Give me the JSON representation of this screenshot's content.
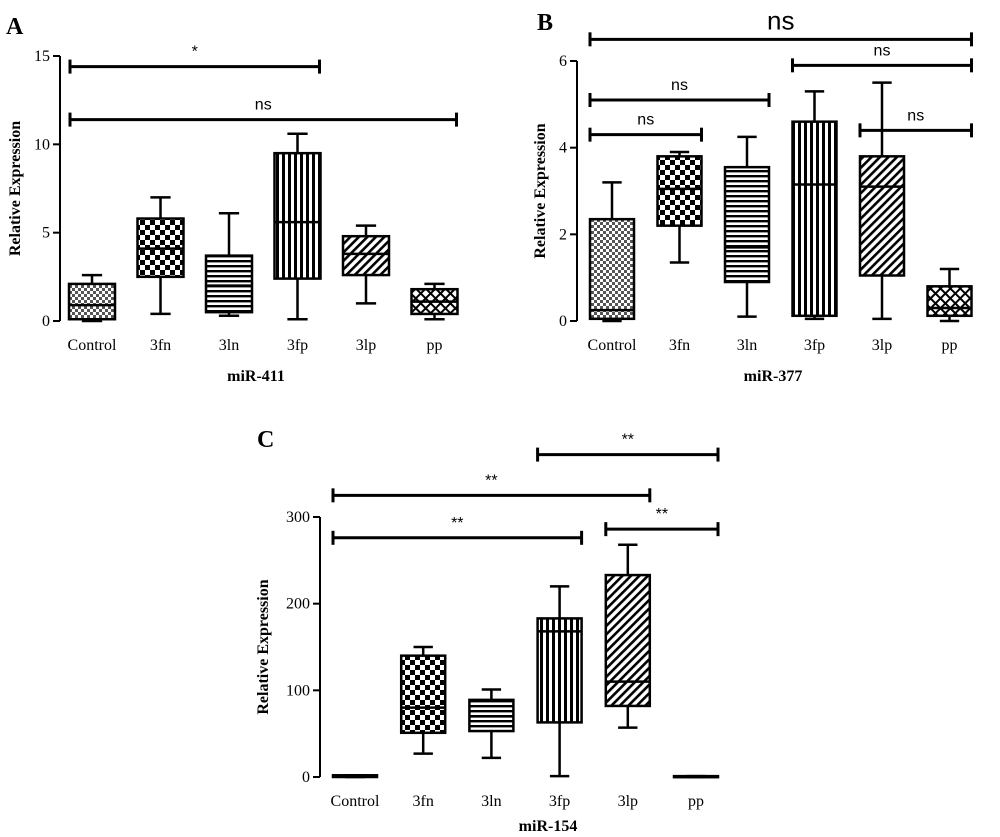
{
  "chart_data": [
    {
      "type": "box",
      "panel_label": "A",
      "xlabel": "miR-411",
      "ylabel": "Relative Expression",
      "categories": [
        "Control",
        "3fn",
        "3ln",
        "3fp",
        "3lp",
        "pp"
      ],
      "ylim": [
        0,
        15
      ],
      "yticks": [
        "0",
        "5",
        "10",
        "15"
      ],
      "boxes": [
        {
          "min": 0.0,
          "q1": 0.1,
          "median": 0.9,
          "q3": 2.1,
          "max": 2.6,
          "pattern": "checker-fine"
        },
        {
          "min": 0.4,
          "q1": 2.5,
          "median": 4.1,
          "q3": 5.8,
          "max": 7.0,
          "pattern": "checker"
        },
        {
          "min": 0.3,
          "q1": 0.5,
          "median": 2.0,
          "q3": 3.7,
          "max": 6.1,
          "pattern": "hlines"
        },
        {
          "min": 0.1,
          "q1": 2.4,
          "median": 5.6,
          "q3": 9.5,
          "max": 10.6,
          "pattern": "vlines"
        },
        {
          "min": 1.0,
          "q1": 2.6,
          "median": 3.8,
          "q3": 4.8,
          "max": 5.4,
          "pattern": "diag"
        },
        {
          "min": 0.1,
          "q1": 0.4,
          "median": 1.1,
          "q3": 1.8,
          "max": 2.1,
          "pattern": "crosshatch"
        }
      ],
      "comparisons": [
        {
          "from": "Control",
          "to": "3fp",
          "label": "*",
          "y": 14.4
        },
        {
          "from": "Control",
          "to": "pp",
          "label": "ns",
          "y": 11.4
        }
      ]
    },
    {
      "type": "box",
      "panel_label": "B",
      "xlabel": "miR-377",
      "ylabel": "Relative Expression",
      "categories": [
        "Control",
        "3fn",
        "3ln",
        "3fp",
        "3lp",
        "pp"
      ],
      "ylim": [
        0,
        6
      ],
      "yticks": [
        "0",
        "2",
        "4",
        "6"
      ],
      "boxes": [
        {
          "min": 0.0,
          "q1": 0.05,
          "median": 0.25,
          "q3": 2.35,
          "max": 3.2,
          "pattern": "checker-fine"
        },
        {
          "min": 1.35,
          "q1": 2.2,
          "median": 3.05,
          "q3": 3.8,
          "max": 3.9,
          "pattern": "checker"
        },
        {
          "min": 0.1,
          "q1": 0.9,
          "median": 1.7,
          "q3": 3.55,
          "max": 4.25,
          "pattern": "hlines"
        },
        {
          "min": 0.05,
          "q1": 0.12,
          "median": 3.15,
          "q3": 4.6,
          "max": 5.3,
          "pattern": "vlines"
        },
        {
          "min": 0.05,
          "q1": 1.05,
          "median": 3.1,
          "q3": 3.8,
          "max": 5.5,
          "pattern": "diag"
        },
        {
          "min": 0.0,
          "q1": 0.12,
          "median": 0.3,
          "q3": 0.8,
          "max": 1.2,
          "pattern": "crosshatch"
        }
      ],
      "comparisons": [
        {
          "from": "Control",
          "to": "pp",
          "label": "ns",
          "y": 6.5,
          "large": true
        },
        {
          "from": "3fp",
          "to": "pp",
          "label": "ns",
          "y": 5.9
        },
        {
          "from": "Control",
          "to": "3ln",
          "label": "ns",
          "y": 5.1
        },
        {
          "from": "Control",
          "to": "3fn",
          "label": "ns",
          "y": 4.3
        },
        {
          "from": "3lp",
          "to": "pp",
          "label": "ns",
          "y": 4.4
        }
      ]
    },
    {
      "type": "box",
      "panel_label": "C",
      "xlabel": "miR-154",
      "ylabel": "Relative Expression",
      "categories": [
        "Control",
        "3fn",
        "3ln",
        "3fp",
        "3lp",
        "pp"
      ],
      "ylim": [
        0,
        300
      ],
      "yticks": [
        "0",
        "100",
        "200",
        "300"
      ],
      "boxes": [
        {
          "min": 0,
          "q1": 0,
          "median": 1,
          "q3": 2,
          "max": 2,
          "pattern": "checker-fine"
        },
        {
          "min": 27,
          "q1": 51,
          "median": 80,
          "q3": 140,
          "max": 150,
          "pattern": "checker"
        },
        {
          "min": 22,
          "q1": 53,
          "median": 70,
          "q3": 89,
          "max": 101,
          "pattern": "hlines"
        },
        {
          "min": 1,
          "q1": 63,
          "median": 168,
          "q3": 183,
          "max": 220,
          "pattern": "vlines"
        },
        {
          "min": 57,
          "q1": 82,
          "median": 110,
          "q3": 233,
          "max": 268,
          "pattern": "diag"
        },
        {
          "min": 0,
          "q1": 0,
          "median": 0,
          "q3": 1,
          "max": 1,
          "pattern": "crosshatch"
        }
      ],
      "comparisons": [
        {
          "from": "3fp",
          "to": "pp",
          "label": "**",
          "y": 372
        },
        {
          "from": "Control",
          "to": "3lp",
          "label": "**",
          "y": 325
        },
        {
          "from": "3lp",
          "to": "pp",
          "label": "**",
          "y": 286
        },
        {
          "from": "Control",
          "to": "3fp",
          "label": "**",
          "y": 276
        }
      ]
    }
  ]
}
